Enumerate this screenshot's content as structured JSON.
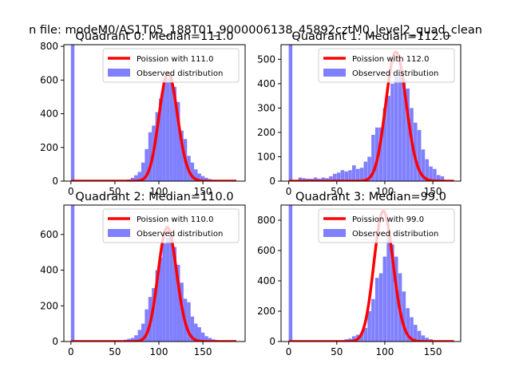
{
  "figure": {
    "suptitle": "n file: modeM0/AS1T05_188T01_9000006138_45892cztM0_level2_quad_clean"
  },
  "colors": {
    "hist": "#8080ff",
    "poisson": "#ff0000",
    "axes": "#000000",
    "background": "#ffffff"
  },
  "legend_labels": {
    "observed": "Observed distribution"
  },
  "chart_data": [
    {
      "type": "bar",
      "title": "Quadrant 0: Median=111.0",
      "xlim": [
        -8,
        198
      ],
      "ylim": [
        0,
        810
      ],
      "xticks": [
        0,
        50,
        100,
        150
      ],
      "yticks": [
        0,
        200,
        400,
        600,
        800
      ],
      "legend_position": "upper-right",
      "poisson": {
        "label": "Poission with 111.0",
        "mean": 111.0,
        "peak": 640,
        "range": [
          0,
          188
        ]
      },
      "spike": {
        "x": 0,
        "y": 810
      },
      "bin_width": 4,
      "histogram": [
        [
          56,
          5
        ],
        [
          60,
          5
        ],
        [
          64,
          10
        ],
        [
          68,
          20
        ],
        [
          72,
          35
        ],
        [
          76,
          55
        ],
        [
          80,
          110
        ],
        [
          84,
          190
        ],
        [
          88,
          290
        ],
        [
          92,
          330
        ],
        [
          96,
          410
        ],
        [
          100,
          490
        ],
        [
          104,
          600
        ],
        [
          108,
          610
        ],
        [
          112,
          640
        ],
        [
          116,
          560
        ],
        [
          120,
          470
        ],
        [
          124,
          300
        ],
        [
          128,
          250
        ],
        [
          132,
          150
        ],
        [
          136,
          110
        ],
        [
          140,
          70
        ],
        [
          144,
          45
        ],
        [
          148,
          30
        ],
        [
          152,
          20
        ],
        [
          156,
          12
        ],
        [
          160,
          8
        ]
      ]
    },
    {
      "type": "bar",
      "title": "Quadrant 1: Median=112.0",
      "xlim": [
        -8,
        179
      ],
      "ylim": [
        0,
        560
      ],
      "xticks": [
        0,
        50,
        100,
        150
      ],
      "yticks": [
        0,
        100,
        200,
        300,
        400,
        500
      ],
      "legend_position": "upper-right",
      "poisson": {
        "label": "Poission with 112.0",
        "mean": 112.0,
        "peak": 530,
        "range": [
          0,
          172
        ]
      },
      "spike": {
        "x": 0,
        "y": 560
      },
      "bin_width": 3.8,
      "histogram": [
        [
          10,
          15
        ],
        [
          14,
          12
        ],
        [
          18,
          10
        ],
        [
          22,
          10
        ],
        [
          26,
          15
        ],
        [
          30,
          10
        ],
        [
          34,
          15
        ],
        [
          38,
          12
        ],
        [
          42,
          20
        ],
        [
          46,
          30
        ],
        [
          50,
          35
        ],
        [
          54,
          45
        ],
        [
          58,
          40
        ],
        [
          62,
          45
        ],
        [
          66,
          65
        ],
        [
          70,
          50
        ],
        [
          74,
          55
        ],
        [
          78,
          80
        ],
        [
          82,
          100
        ],
        [
          86,
          190
        ],
        [
          90,
          220
        ],
        [
          94,
          220
        ],
        [
          98,
          300
        ],
        [
          102,
          350
        ],
        [
          106,
          400
        ],
        [
          110,
          430
        ],
        [
          114,
          440
        ],
        [
          118,
          420
        ],
        [
          122,
          380
        ],
        [
          126,
          300
        ],
        [
          130,
          240
        ],
        [
          134,
          210
        ],
        [
          138,
          130
        ],
        [
          142,
          90
        ],
        [
          146,
          60
        ],
        [
          150,
          50
        ],
        [
          154,
          25
        ],
        [
          158,
          20
        ]
      ]
    },
    {
      "type": "bar",
      "title": "Quadrant 2: Median=110.0",
      "xlim": [
        -8,
        198
      ],
      "ylim": [
        0,
        765
      ],
      "xticks": [
        0,
        50,
        100,
        150
      ],
      "yticks": [
        0,
        200,
        400,
        600
      ],
      "legend_position": "upper-right",
      "poisson": {
        "label": "Poission with 110.0",
        "mean": 110.0,
        "peak": 640,
        "range": [
          0,
          188
        ]
      },
      "spike": {
        "x": 0,
        "y": 765
      },
      "bin_width": 4,
      "histogram": [
        [
          52,
          5
        ],
        [
          56,
          5
        ],
        [
          60,
          10
        ],
        [
          64,
          15
        ],
        [
          68,
          20
        ],
        [
          72,
          35
        ],
        [
          76,
          65
        ],
        [
          80,
          100
        ],
        [
          84,
          180
        ],
        [
          88,
          250
        ],
        [
          92,
          300
        ],
        [
          96,
          400
        ],
        [
          100,
          470
        ],
        [
          104,
          550
        ],
        [
          108,
          580
        ],
        [
          112,
          600
        ],
        [
          116,
          530
        ],
        [
          120,
          430
        ],
        [
          124,
          330
        ],
        [
          128,
          240
        ],
        [
          132,
          220
        ],
        [
          136,
          140
        ],
        [
          140,
          100
        ],
        [
          144,
          80
        ],
        [
          148,
          50
        ],
        [
          152,
          30
        ],
        [
          156,
          20
        ],
        [
          160,
          12
        ],
        [
          164,
          8
        ]
      ]
    },
    {
      "type": "bar",
      "title": "Quadrant 3: Median=99.0",
      "xlim": [
        -8,
        179
      ],
      "ylim": [
        0,
        900
      ],
      "xticks": [
        0,
        50,
        100,
        150
      ],
      "yticks": [
        0,
        200,
        400,
        600,
        800
      ],
      "legend_position": "upper-right",
      "poisson": {
        "label": "Poission with 99.0",
        "mean": 99.0,
        "peak": 860,
        "range": [
          0,
          172
        ]
      },
      "spike": {
        "x": 0,
        "y": 900
      },
      "bin_width": 3.8,
      "histogram": [
        [
          50,
          5
        ],
        [
          54,
          8
        ],
        [
          58,
          15
        ],
        [
          62,
          20
        ],
        [
          66,
          35
        ],
        [
          70,
          45
        ],
        [
          74,
          55
        ],
        [
          78,
          90
        ],
        [
          82,
          200
        ],
        [
          86,
          280
        ],
        [
          90,
          420
        ],
        [
          94,
          450
        ],
        [
          98,
          560
        ],
        [
          102,
          680
        ],
        [
          106,
          640
        ],
        [
          110,
          560
        ],
        [
          114,
          450
        ],
        [
          118,
          330
        ],
        [
          122,
          220
        ],
        [
          126,
          160
        ],
        [
          130,
          110
        ],
        [
          134,
          70
        ],
        [
          138,
          40
        ],
        [
          142,
          25
        ],
        [
          146,
          15
        ],
        [
          150,
          8
        ]
      ]
    }
  ]
}
